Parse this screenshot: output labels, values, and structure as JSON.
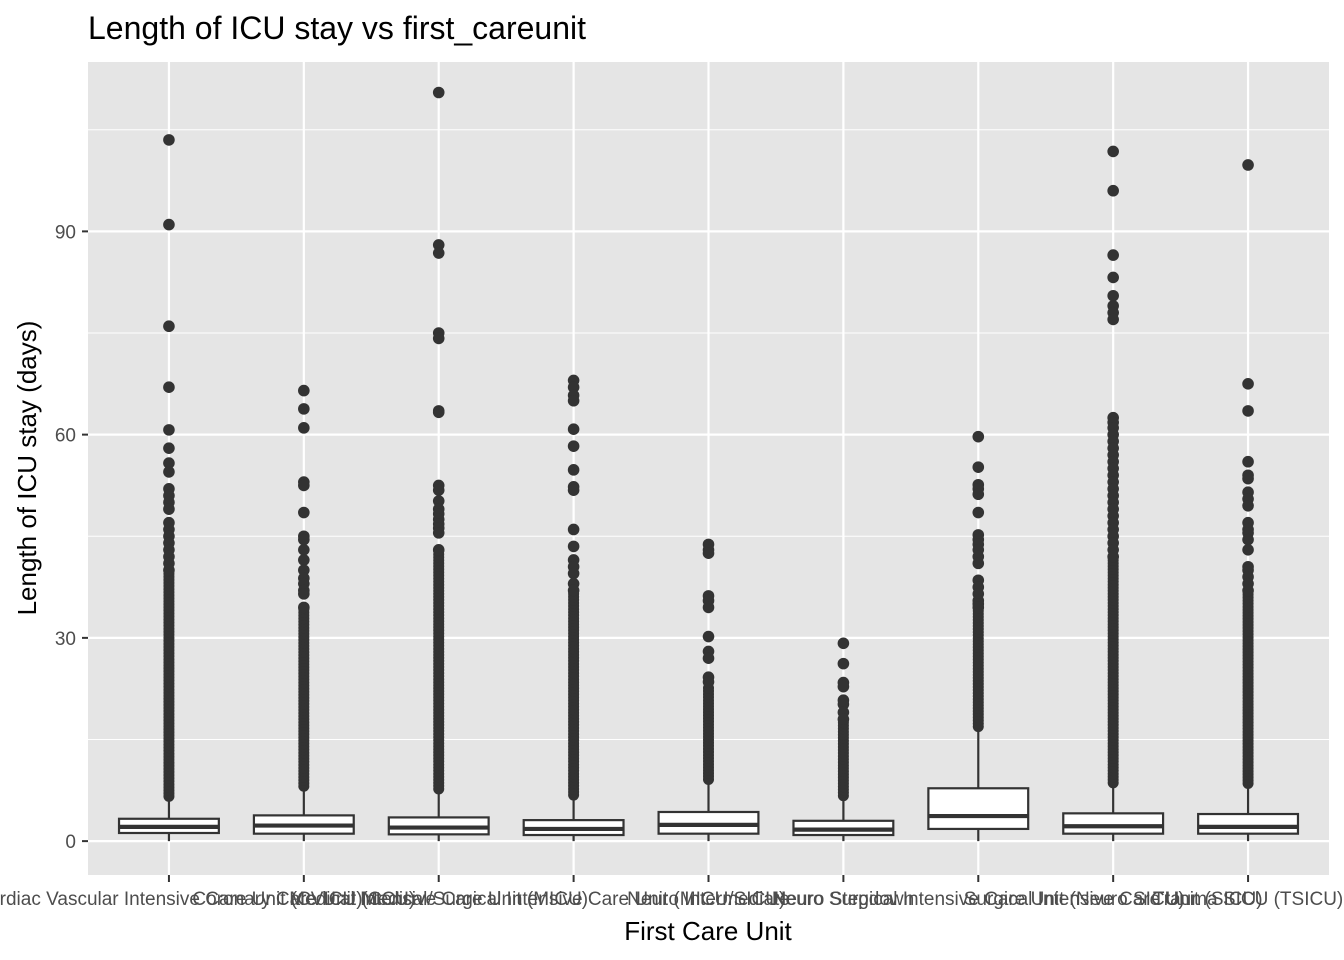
{
  "chart_data": {
    "type": "boxplot",
    "title": "Length of ICU stay vs first_careunit",
    "xlabel": "First Care Unit",
    "ylabel": "Length of ICU stay (days)",
    "ylim": [
      -5,
      115
    ],
    "yticks": [
      0,
      30,
      60,
      90
    ],
    "grid": true,
    "legend": "none",
    "colors": {
      "panel": "#e5e5e5",
      "grid": "#ffffff",
      "box_fill": "#ffffff",
      "box_line": "#333333",
      "point": "#333333"
    },
    "categories": [
      "Cardiac Vascular Intensive Care Unit (CVICU)",
      "Coronary Care Unit (CCU)",
      "Medical Intensive Care Unit (MICU)",
      "Medical/Surgical Intensive Care Unit (MICU/SICU)",
      "Neuro Intermediate",
      "Neuro Stepdown",
      "Neuro Surgical Intensive Care Unit (Neuro SICU)",
      "Surgical Intensive Care Unit (SICU)",
      "Trauma SICU (TSICU)"
    ],
    "boxes": [
      {
        "q1": 1.2,
        "median": 2.1,
        "q3": 3.3,
        "whisker_low": 0.0,
        "whisker_high": 6.3,
        "outlier_min": 6.3,
        "outliers": [
          103.5,
          91.0,
          76.0,
          67.0,
          60.7,
          58.0,
          55.8,
          54.5,
          52.0,
          51.0,
          50.0,
          49.0,
          47.0,
          46.0,
          45.0,
          44.0,
          43.0,
          42.0,
          41.0,
          40.0
        ]
      },
      {
        "q1": 1.1,
        "median": 2.3,
        "q3": 3.8,
        "whisker_low": 0.0,
        "whisker_high": 7.8,
        "outlier_min": 7.8,
        "outliers": [
          66.5,
          63.8,
          61.0,
          53.0,
          52.5,
          48.5,
          45.0,
          44.5,
          43.0,
          41.5,
          40.0,
          38.8,
          38.0,
          37.0,
          36.5,
          34.5
        ]
      },
      {
        "q1": 1.0,
        "median": 2.0,
        "q3": 3.5,
        "whisker_low": 0.0,
        "whisker_high": 7.4,
        "outlier_min": 7.4,
        "outliers": [
          110.5,
          88.0,
          86.8,
          75.0,
          74.2,
          63.5,
          63.3,
          52.5,
          51.8,
          50.2,
          49.0,
          48.3,
          47.5,
          46.8,
          46.2,
          45.5,
          43.0
        ]
      },
      {
        "q1": 0.9,
        "median": 1.8,
        "q3": 3.1,
        "whisker_low": 0.0,
        "whisker_high": 6.5,
        "outlier_min": 6.5,
        "outliers": [
          68.0,
          67.0,
          65.8,
          65.0,
          60.8,
          58.3,
          54.8,
          52.3,
          51.8,
          46.0,
          43.5,
          41.5,
          40.5,
          39.5,
          38.0,
          37.0
        ]
      },
      {
        "q1": 1.1,
        "median": 2.4,
        "q3": 4.3,
        "whisker_low": 0.0,
        "whisker_high": 8.8,
        "outlier_min": 8.8,
        "outlier_max_dense": 23.0,
        "outliers": [
          43.8,
          43.0,
          42.5,
          36.2,
          35.5,
          34.5,
          30.2,
          28.0,
          27.0,
          24.2,
          23.5
        ]
      },
      {
        "q1": 0.9,
        "median": 1.7,
        "q3": 3.0,
        "whisker_low": 0.0,
        "whisker_high": 6.4,
        "outlier_min": 6.4,
        "outlier_max_dense": 17.5,
        "outliers": [
          29.2,
          26.2,
          23.4,
          22.8,
          20.8,
          20.2,
          19.0,
          18.0
        ]
      },
      {
        "q1": 1.8,
        "median": 3.7,
        "q3": 7.8,
        "whisker_low": 0.0,
        "whisker_high": 16.6,
        "outlier_min": 16.6,
        "outliers": [
          59.7,
          55.2,
          52.6,
          52.0,
          51.2,
          48.5,
          45.2,
          44.5,
          43.8,
          43.0,
          42.0,
          41.0,
          38.5,
          37.5,
          36.5,
          35.5,
          35.0,
          34.5
        ]
      },
      {
        "q1": 1.1,
        "median": 2.2,
        "q3": 4.1,
        "whisker_low": 0.0,
        "whisker_high": 8.3,
        "outlier_min": 8.3,
        "outliers": [
          101.8,
          96.0,
          86.5,
          83.2,
          80.5,
          79.0,
          78.0,
          77.0,
          62.5,
          61.8,
          61.0,
          60.0,
          59.0,
          58.0,
          57.0,
          56.0,
          55.0,
          54.0,
          53.0,
          52.0,
          51.0,
          50.0,
          49.0,
          48.0,
          47.0,
          46.0,
          45.0,
          44.0,
          43.0,
          42.0
        ]
      },
      {
        "q1": 1.1,
        "median": 2.1,
        "q3": 4.0,
        "whisker_low": 0.0,
        "whisker_high": 8.2,
        "outlier_min": 8.2,
        "outliers": [
          99.8,
          67.5,
          63.5,
          56.0,
          54.0,
          53.5,
          51.5,
          50.5,
          49.5,
          47.0,
          46.0,
          45.5,
          44.5,
          43.0,
          40.5,
          40.0,
          39.0,
          38.0,
          37.0
        ]
      }
    ]
  }
}
